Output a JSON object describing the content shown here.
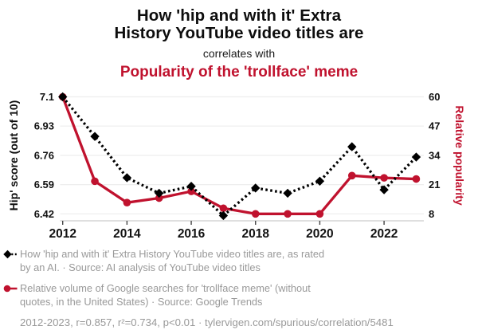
{
  "header": {
    "title": "How 'hip and with it' Extra\nHistory YouTube video titles are",
    "connector": "correlates with",
    "subtitle": "Popularity of the 'trollface' meme"
  },
  "colors": {
    "accent_red": "#c0122e",
    "series_black": "#000000",
    "legend_gray": "#999999",
    "gridline": "#ededed",
    "axis_line": "#cccccc",
    "tick_mark": "#444444"
  },
  "chart_data": {
    "type": "line",
    "x": [
      2012,
      2013,
      2014,
      2015,
      2016,
      2017,
      2018,
      2019,
      2020,
      2021,
      2022,
      2023
    ],
    "x_ticks": [
      2012,
      2014,
      2016,
      2018,
      2020,
      2022
    ],
    "grid": "horizontal-only",
    "legend_position": "bottom",
    "series": [
      {
        "name": "hip-score",
        "axis": "left",
        "color": "#000000",
        "style": "dashed",
        "marker": "diamond",
        "values": [
          7.1,
          6.87,
          6.63,
          6.54,
          6.58,
          6.41,
          6.57,
          6.54,
          6.61,
          6.81,
          6.56,
          6.75
        ]
      },
      {
        "name": "trollface-popularity",
        "axis": "right",
        "color": "#c0122e",
        "style": "solid",
        "marker": "circle",
        "values": [
          60,
          22.5,
          13,
          15,
          18,
          10.5,
          8,
          8,
          8,
          25,
          24,
          23.5
        ]
      }
    ],
    "left_axis": {
      "title": "Hip' score (out of 10)",
      "min": 6.42,
      "max": 7.1,
      "tick_labels": [
        "7.1",
        "6.93",
        "6.76",
        "6.59",
        "6.42"
      ]
    },
    "right_axis": {
      "title": "Relative popularity",
      "min": 8,
      "max": 60,
      "tick_labels": [
        "60",
        "47",
        "34",
        "21",
        "8"
      ]
    }
  },
  "legend": {
    "items": [
      {
        "label": "How 'hip and with it' Extra History YouTube video titles are, as rated\nby an AI. · Source: AI analysis of YouTube video titles"
      },
      {
        "label": "Relative volume of Google searches for 'trollface meme' (without\nquotes, in the United States) · Source: Google Trends"
      }
    ]
  },
  "footer": {
    "text": "2012-2023, r=0.857, r²=0.734, p<0.01 · tylervigen.com/spurious/correlation/5481"
  }
}
